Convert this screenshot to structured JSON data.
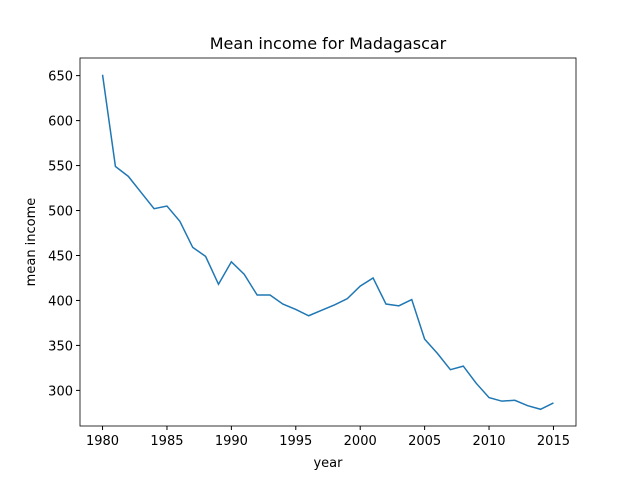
{
  "chart_data": {
    "type": "line",
    "title": "Mean income for Madagascar",
    "xlabel": "year",
    "ylabel": "mean income",
    "x": [
      1980,
      1981,
      1982,
      1983,
      1984,
      1985,
      1986,
      1987,
      1988,
      1989,
      1990,
      1991,
      1992,
      1993,
      1994,
      1995,
      1996,
      1997,
      1998,
      1999,
      2000,
      2001,
      2002,
      2003,
      2004,
      2005,
      2006,
      2007,
      2008,
      2009,
      2010,
      2011,
      2012,
      2013,
      2014,
      2015
    ],
    "series": [
      {
        "name": "mean income",
        "color": "#1f77b4",
        "values": [
          651,
          549,
          538,
          520,
          502,
          505,
          488,
          459,
          449,
          418,
          443,
          429,
          406,
          406,
          396,
          390,
          383,
          389,
          395,
          402,
          416,
          425,
          396,
          394,
          401,
          357,
          341,
          323,
          327,
          308,
          292,
          288,
          289,
          283,
          279,
          286
        ]
      }
    ],
    "xlim": [
      1978.25,
      2016.75
    ],
    "xticks": [
      1980,
      1985,
      1990,
      1995,
      2000,
      2005,
      2010,
      2015
    ],
    "ylim": [
      260.4,
      669.6
    ],
    "yticks": [
      300,
      350,
      400,
      450,
      500,
      550,
      600,
      650
    ]
  }
}
